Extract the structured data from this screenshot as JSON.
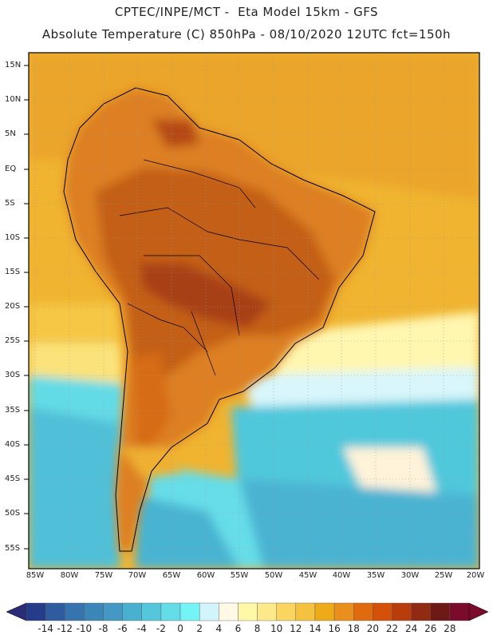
{
  "header": {
    "line1": "CPTEC/INPE/MCT -  Eta Model 15km - GFS",
    "line2": "Absolute Temperature (C) 850hPa - 08/10/2020 12UTC fct=150h"
  },
  "map": {
    "lat_labels": [
      "15N",
      "10N",
      "5N",
      "EQ",
      "5S",
      "10S",
      "15S",
      "20S",
      "25S",
      "30S",
      "35S",
      "40S",
      "45S",
      "50S",
      "55S"
    ],
    "lon_labels": [
      "85W",
      "80W",
      "75W",
      "70W",
      "65W",
      "60W",
      "55W",
      "50W",
      "45W",
      "40W",
      "35W",
      "30W",
      "25W",
      "20W"
    ]
  },
  "colorbar": {
    "labels": [
      "-14",
      "-12",
      "-10",
      "-8",
      "-6",
      "-4",
      "-2",
      "0",
      "2",
      "4",
      "6",
      "8",
      "10",
      "12",
      "14",
      "16",
      "18",
      "20",
      "22",
      "24",
      "26",
      "28"
    ],
    "colors": [
      "#253c8a",
      "#2e5c9e",
      "#3574ae",
      "#3b85b8",
      "#4499c4",
      "#4ab0d0",
      "#55c7dc",
      "#64dde9",
      "#74f4f6",
      "#d2f5fb",
      "#fff9e6",
      "#fff8a8",
      "#fde98a",
      "#fad55f",
      "#f4c23f",
      "#eeab18",
      "#e98f1b",
      "#e06b0e",
      "#d55009",
      "#b93c0d",
      "#902a12",
      "#6d1a16",
      "#7a0b2b"
    ],
    "left_arrow": "#2b2c78",
    "right_arrow": "#7a0b2b"
  }
}
